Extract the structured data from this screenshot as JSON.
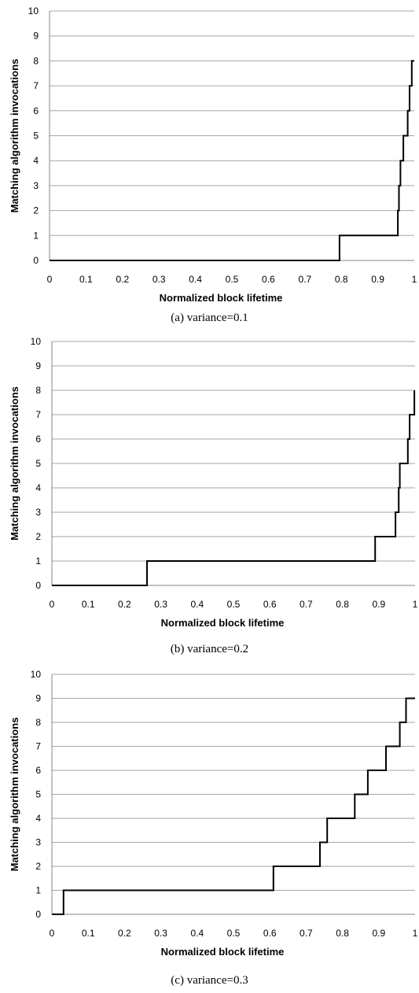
{
  "figures": [
    {
      "caption": "(a)  variance=0.1",
      "chart_data": {
        "type": "line",
        "step": true,
        "xlabel": "Normalized block lifetime",
        "ylabel": "Matching algorithm invocations",
        "xlim": [
          0,
          1
        ],
        "ylim": [
          0,
          10
        ],
        "xticks": [
          "0",
          "0.1",
          "0.2",
          "0.3",
          "0.4",
          "0.5",
          "0.6",
          "0.7",
          "0.8",
          "0.9",
          "1"
        ],
        "yticks": [
          "0",
          "1",
          "2",
          "3",
          "4",
          "5",
          "6",
          "7",
          "8",
          "9",
          "10"
        ],
        "grid": "horizontal",
        "series": [
          {
            "x": [
              0,
              0.795,
              0.795,
              0.955,
              0.955,
              0.958,
              0.958,
              0.962,
              0.962,
              0.97,
              0.97,
              0.982,
              0.982,
              0.987,
              0.987,
              0.993,
              0.993,
              1.0
            ],
            "y": [
              0,
              0,
              1,
              1,
              2,
              2,
              3,
              3,
              4,
              4,
              5,
              5,
              6,
              6,
              7,
              7,
              8,
              8
            ]
          }
        ]
      }
    },
    {
      "caption": "(b)  variance=0.2",
      "chart_data": {
        "type": "line",
        "step": true,
        "xlabel": "Normalized block lifetime",
        "ylabel": "Matching algorithm invocations",
        "xlim": [
          0,
          1
        ],
        "ylim": [
          0,
          10
        ],
        "xticks": [
          "0",
          "0.1",
          "0.2",
          "0.3",
          "0.4",
          "0.5",
          "0.6",
          "0.7",
          "0.8",
          "0.9",
          "1"
        ],
        "yticks": [
          "0",
          "1",
          "2",
          "3",
          "4",
          "5",
          "6",
          "7",
          "8",
          "9",
          "10"
        ],
        "grid": "horizontal",
        "series": [
          {
            "x": [
              0,
              0.262,
              0.262,
              0.89,
              0.89,
              0.946,
              0.946,
              0.955,
              0.955,
              0.958,
              0.958,
              0.98,
              0.98,
              0.985,
              0.985,
              0.998,
              0.998
            ],
            "y": [
              0,
              0,
              1,
              1,
              2,
              2,
              3,
              3,
              4,
              4,
              5,
              5,
              6,
              6,
              7,
              7,
              8
            ]
          }
        ]
      }
    },
    {
      "caption": "(c)  variance=0.3",
      "chart_data": {
        "type": "line",
        "step": true,
        "xlabel": "Normalized block lifetime",
        "ylabel": "Matching algorithm invocations",
        "xlim": [
          0,
          1
        ],
        "ylim": [
          0,
          10
        ],
        "xticks": [
          "0",
          "0.1",
          "0.2",
          "0.3",
          "0.4",
          "0.5",
          "0.6",
          "0.7",
          "0.8",
          "0.9",
          "1"
        ],
        "yticks": [
          "0",
          "1",
          "2",
          "3",
          "4",
          "5",
          "6",
          "7",
          "8",
          "9",
          "10"
        ],
        "grid": "horizontal",
        "series": [
          {
            "x": [
              0,
              0.032,
              0.032,
              0.61,
              0.61,
              0.738,
              0.738,
              0.758,
              0.758,
              0.834,
              0.834,
              0.87,
              0.87,
              0.92,
              0.92,
              0.958,
              0.958,
              0.975,
              0.975,
              1.0
            ],
            "y": [
              0,
              0,
              1,
              1,
              2,
              2,
              3,
              3,
              4,
              4,
              5,
              5,
              6,
              6,
              7,
              7,
              8,
              8,
              9,
              9
            ]
          }
        ]
      }
    }
  ]
}
